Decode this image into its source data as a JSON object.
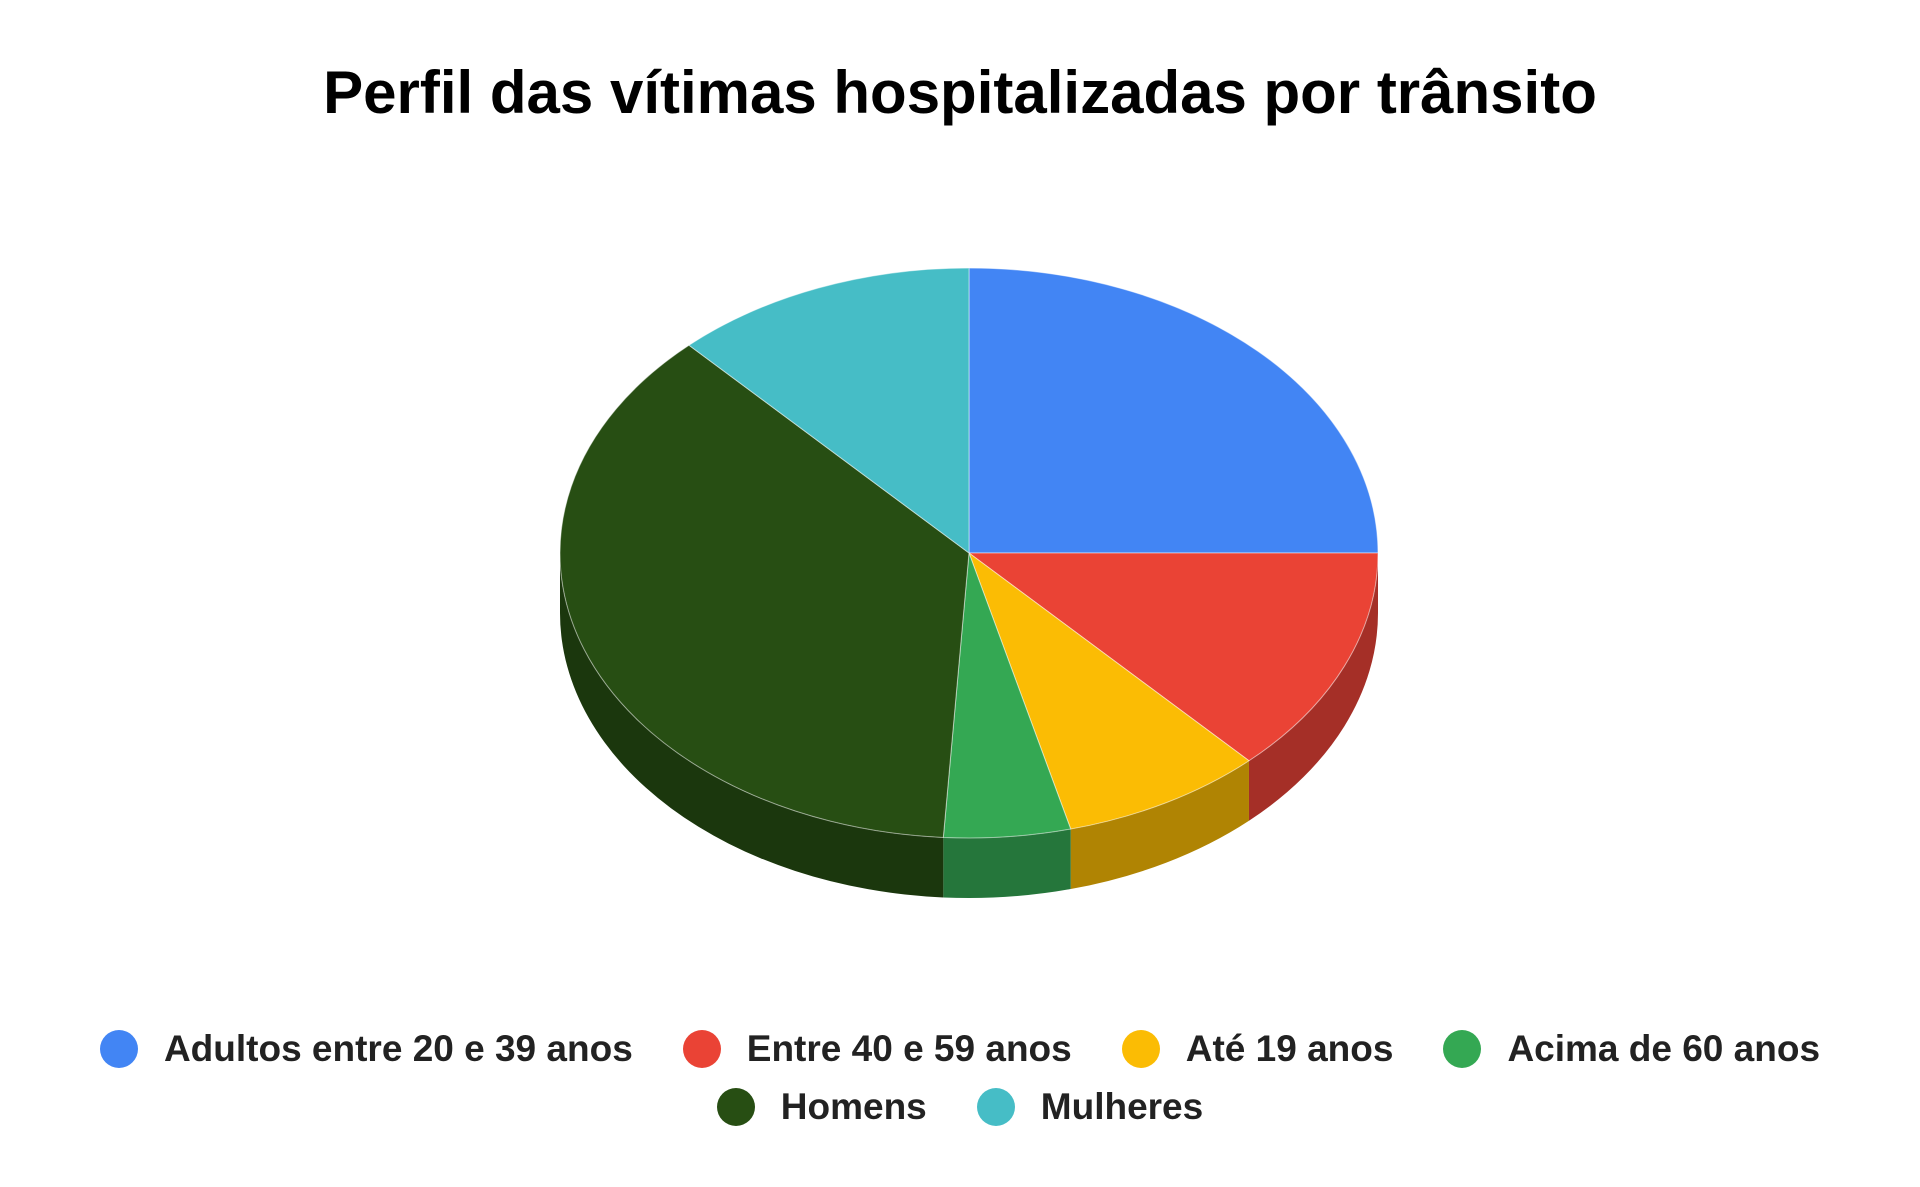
{
  "chart_data": {
    "type": "pie",
    "title": "Perfil das vítimas hospitalizadas por trânsito",
    "three_d": true,
    "legend_position": "bottom",
    "categories": [
      "Adultos entre 20 e 39 anos",
      "Entre 40 e 59 anos",
      "Até 19 anos",
      "Acima de 60 anos",
      "Homens",
      "Mulheres"
    ],
    "values": [
      25,
      13,
      8,
      5,
      37,
      12
    ],
    "colors": [
      "#4285f4",
      "#ea4335",
      "#fbbc04",
      "#34a853",
      "#274e13",
      "#46bdc6"
    ],
    "side_colors": [
      "#2f5fb0",
      "#a52f27",
      "#b08403",
      "#25763b",
      "#1b370d",
      "#318489"
    ]
  }
}
